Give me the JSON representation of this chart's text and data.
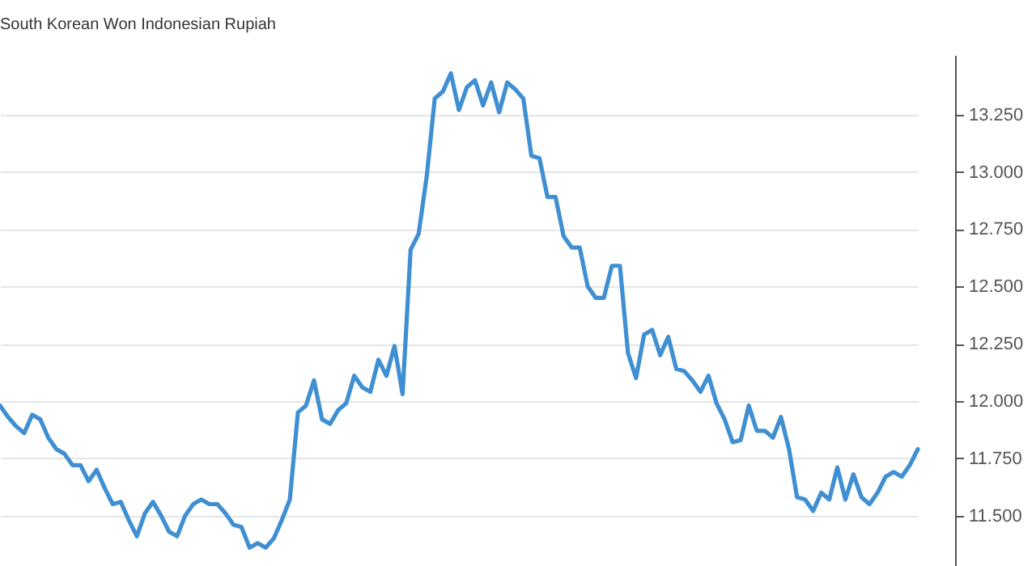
{
  "chart_data": {
    "type": "line",
    "title": "South Korean Won Indonesian Rupiah",
    "categories": [
      null,
      null,
      null,
      null,
      null,
      null,
      null,
      null,
      null,
      null,
      null,
      null,
      null,
      null,
      null,
      null,
      null,
      null,
      null,
      null,
      null,
      null,
      null,
      null,
      null,
      null,
      null,
      null,
      null,
      null,
      null,
      null,
      null,
      null,
      null,
      null,
      null,
      null,
      null,
      null,
      null,
      null,
      null,
      null,
      null,
      null,
      null,
      null,
      null,
      null,
      null,
      null,
      null,
      null,
      null,
      null,
      null,
      null,
      null,
      null,
      null,
      null,
      null,
      null,
      null,
      null,
      null,
      null,
      null,
      null,
      null,
      null,
      null,
      null,
      null,
      null,
      null,
      null,
      null,
      null,
      null,
      null,
      null,
      null,
      null,
      null,
      null,
      null,
      null,
      null,
      null,
      null,
      null,
      null,
      null,
      null,
      null,
      null,
      null,
      null,
      null,
      null,
      null,
      null,
      null,
      null,
      null,
      null,
      null,
      null,
      null,
      null,
      null,
      null,
      null
    ],
    "series": [
      {
        "color": "#3f8fd2",
        "values": [
          11.98,
          11.93,
          11.89,
          11.86,
          11.94,
          11.92,
          11.84,
          11.79,
          11.77,
          11.72,
          11.72,
          11.65,
          11.7,
          11.62,
          11.55,
          11.56,
          11.48,
          11.41,
          11.51,
          11.56,
          11.5,
          11.43,
          11.41,
          11.5,
          11.55,
          11.57,
          11.55,
          11.55,
          11.51,
          11.46,
          11.45,
          11.36,
          11.38,
          11.36,
          11.4,
          11.48,
          11.57,
          11.95,
          11.98,
          12.09,
          11.92,
          11.9,
          11.96,
          11.99,
          12.11,
          12.06,
          12.04,
          12.18,
          12.11,
          12.24,
          12.03,
          12.66,
          12.73,
          12.98,
          13.32,
          13.35,
          13.43,
          13.27,
          13.37,
          13.4,
          13.29,
          13.39,
          13.26,
          13.39,
          13.36,
          13.32,
          13.07,
          13.06,
          12.89,
          12.89,
          12.72,
          12.67,
          12.67,
          12.5,
          12.45,
          12.45,
          12.59,
          12.59,
          12.21,
          12.1,
          12.29,
          12.31,
          12.2,
          12.28,
          12.14,
          12.13,
          12.09,
          12.04,
          12.11,
          11.99,
          11.92,
          11.82,
          11.83,
          11.98,
          11.87,
          11.87,
          11.84,
          11.93,
          11.79,
          11.58,
          11.57,
          11.52,
          11.6,
          11.57,
          11.71,
          11.57,
          11.68,
          11.58,
          11.55,
          11.6,
          11.67,
          11.69,
          11.67,
          11.72,
          11.79
        ]
      }
    ],
    "ylim": [
      11.28,
      13.51
    ],
    "yticks": [
      {
        "value": 11.5,
        "label": "11.500"
      },
      {
        "value": 11.75,
        "label": "11.750"
      },
      {
        "value": 12,
        "label": "12.000"
      },
      {
        "value": 12.25,
        "label": "12.250"
      },
      {
        "value": 12.5,
        "label": "12.500"
      },
      {
        "value": 12.75,
        "label": "12.750"
      },
      {
        "value": 13,
        "label": "13.000"
      },
      {
        "value": 13.25,
        "label": "13.250"
      }
    ],
    "grid": "y",
    "tick_labels": "y",
    "marker": "none",
    "line_style": "solid"
  }
}
